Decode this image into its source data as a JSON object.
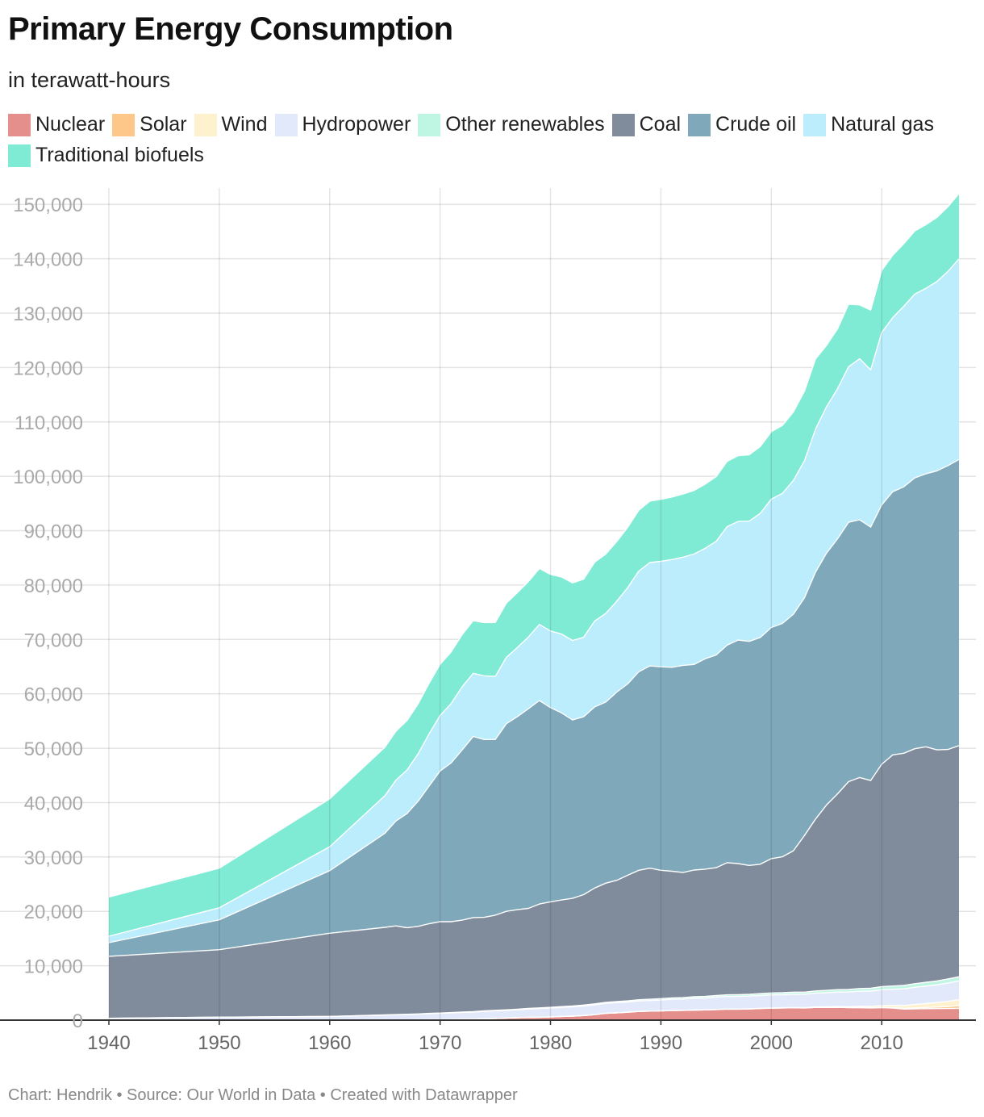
{
  "title": "Primary Energy Consumption",
  "subtitle": "in terawatt-hours",
  "footer": "Chart: Hendrik • Source: Our World in Data • Created with Datawrapper",
  "legend": [
    {
      "name": "Nuclear",
      "color": "#e58f8c"
    },
    {
      "name": "Solar",
      "color": "#fcc789"
    },
    {
      "name": "Wind",
      "color": "#fef1cd"
    },
    {
      "name": "Hydropower",
      "color": "#e2e9fb"
    },
    {
      "name": "Other renewables",
      "color": "#bff6e3"
    },
    {
      "name": "Coal",
      "color": "#808c9c"
    },
    {
      "name": "Crude oil",
      "color": "#7fa8ba"
    },
    {
      "name": "Natural gas",
      "color": "#bbedfc"
    },
    {
      "name": "Traditional biofuels",
      "color": "#80ebd4"
    }
  ],
  "chart_data": {
    "type": "area",
    "stacked": true,
    "title": "Primary Energy Consumption",
    "subtitle": "in terawatt-hours",
    "xlabel": "",
    "ylabel": "",
    "xlim": [
      1940,
      2017
    ],
    "ylim": [
      0,
      153000
    ],
    "x_ticks": [
      "1940",
      "1950",
      "1960",
      "1970",
      "1980",
      "1990",
      "2000",
      "2010"
    ],
    "x_tick_values": [
      1940,
      1950,
      1960,
      1970,
      1980,
      1990,
      2000,
      2010
    ],
    "y_ticks": [
      "0",
      "10,000",
      "20,000",
      "30,000",
      "40,000",
      "50,000",
      "60,000",
      "70,000",
      "80,000",
      "90,000",
      "100,000",
      "110,000",
      "120,000",
      "130,000",
      "140,000",
      "150,000"
    ],
    "y_tick_values": [
      0,
      10000,
      20000,
      30000,
      40000,
      50000,
      60000,
      70000,
      80000,
      90000,
      100000,
      110000,
      120000,
      130000,
      140000,
      150000
    ],
    "grid": true,
    "legend_position": "top",
    "x": [
      1940,
      1950,
      1960,
      1965,
      1966,
      1967,
      1968,
      1969,
      1970,
      1971,
      1972,
      1973,
      1974,
      1975,
      1976,
      1977,
      1978,
      1979,
      1980,
      1981,
      1982,
      1983,
      1984,
      1985,
      1986,
      1987,
      1988,
      1989,
      1990,
      1991,
      1992,
      1993,
      1994,
      1995,
      1996,
      1997,
      1998,
      1999,
      2000,
      2001,
      2002,
      2003,
      2004,
      2005,
      2006,
      2007,
      2008,
      2009,
      2010,
      2011,
      2012,
      2013,
      2014,
      2015,
      2016,
      2017
    ],
    "series": [
      {
        "name": "Nuclear",
        "color": "#e58f8c",
        "values": [
          0,
          0,
          0,
          20,
          30,
          50,
          60,
          80,
          90,
          120,
          150,
          200,
          250,
          310,
          380,
          460,
          520,
          540,
          590,
          680,
          740,
          850,
          1010,
          1250,
          1350,
          1460,
          1600,
          1660,
          1700,
          1760,
          1800,
          1850,
          1880,
          1950,
          2030,
          2020,
          2050,
          2140,
          2190,
          2240,
          2270,
          2240,
          2340,
          2340,
          2360,
          2300,
          2290,
          2240,
          2300,
          2220,
          2040,
          2080,
          2110,
          2120,
          2140,
          2160
        ]
      },
      {
        "name": "Solar",
        "color": "#fcc789",
        "values": [
          0,
          0,
          0,
          0,
          0,
          0,
          0,
          0,
          0,
          0,
          0,
          0,
          0,
          0,
          0,
          0,
          0,
          0,
          0,
          0,
          0,
          0,
          0,
          0,
          0,
          0,
          0,
          0,
          1,
          1,
          1,
          1,
          1,
          1,
          1,
          1,
          1,
          1,
          1,
          2,
          2,
          3,
          4,
          6,
          8,
          10,
          15,
          25,
          40,
          70,
          120,
          170,
          220,
          280,
          360,
          490
        ]
      },
      {
        "name": "Wind",
        "color": "#fef1cd",
        "values": [
          0,
          0,
          0,
          0,
          0,
          0,
          0,
          0,
          0,
          0,
          0,
          0,
          0,
          0,
          0,
          0,
          0,
          0,
          0,
          0,
          0,
          0,
          0,
          0,
          0,
          0,
          0,
          0,
          4,
          5,
          6,
          7,
          8,
          10,
          12,
          15,
          20,
          25,
          31,
          38,
          52,
          63,
          85,
          104,
          132,
          170,
          220,
          276,
          342,
          435,
          520,
          635,
          706,
          838,
          957,
          1120
        ]
      },
      {
        "name": "Hydropower",
        "color": "#e2e9fb",
        "values": [
          340,
          550,
          690,
          920,
          970,
          1000,
          1040,
          1110,
          1170,
          1220,
          1270,
          1290,
          1370,
          1410,
          1420,
          1440,
          1520,
          1590,
          1630,
          1660,
          1700,
          1760,
          1810,
          1840,
          1870,
          1880,
          1930,
          1940,
          2010,
          2060,
          2060,
          2160,
          2180,
          2270,
          2300,
          2340,
          2350,
          2370,
          2430,
          2400,
          2440,
          2460,
          2530,
          2590,
          2660,
          2700,
          2790,
          2800,
          2910,
          2960,
          3080,
          3160,
          3230,
          3250,
          3380,
          3460
        ]
      },
      {
        "name": "Other renewables",
        "color": "#bff6e3",
        "values": [
          0,
          0,
          0,
          30,
          30,
          40,
          40,
          50,
          50,
          60,
          70,
          70,
          80,
          90,
          100,
          110,
          120,
          130,
          140,
          150,
          160,
          170,
          180,
          190,
          200,
          210,
          230,
          240,
          250,
          260,
          270,
          280,
          290,
          300,
          310,
          320,
          330,
          340,
          350,
          360,
          380,
          390,
          410,
          430,
          450,
          470,
          500,
          520,
          560,
          590,
          620,
          660,
          690,
          710,
          730,
          760
        ]
      },
      {
        "name": "Coal",
        "color": "#808c9c",
        "values": [
          11400,
          12400,
          15300,
          16100,
          16300,
          15900,
          16100,
          16500,
          16800,
          16700,
          16900,
          17300,
          17200,
          17500,
          18100,
          18300,
          18400,
          19100,
          19400,
          19600,
          19800,
          20300,
          21300,
          21900,
          22300,
          23100,
          23800,
          24100,
          23600,
          23300,
          23000,
          23300,
          23400,
          23500,
          24300,
          24100,
          23700,
          23800,
          24700,
          25000,
          26000,
          28800,
          31600,
          34100,
          36000,
          38200,
          38800,
          38200,
          40900,
          42500,
          42700,
          43200,
          43300,
          42500,
          42200,
          42500
        ]
      },
      {
        "name": "Crude oil",
        "color": "#7fa8ba",
        "values": [
          2500,
          5500,
          11500,
          17300,
          19300,
          21000,
          23000,
          25300,
          27700,
          29200,
          31300,
          33300,
          32700,
          32300,
          34500,
          35500,
          36700,
          37400,
          35700,
          34400,
          32800,
          32700,
          33300,
          33300,
          34600,
          35200,
          36500,
          37200,
          37400,
          37500,
          38100,
          37800,
          38700,
          39100,
          40000,
          41100,
          41200,
          41700,
          42500,
          42900,
          43500,
          43700,
          45400,
          46300,
          46900,
          47700,
          47400,
          46600,
          47700,
          48400,
          49000,
          49800,
          50200,
          51300,
          52200,
          52600
        ]
      },
      {
        "name": "Natural gas",
        "color": "#bbedfc",
        "values": [
          1200,
          2200,
          4400,
          6900,
          7500,
          8000,
          8700,
          9600,
          10200,
          10900,
          11600,
          11600,
          11700,
          11600,
          12200,
          12700,
          13200,
          14000,
          14100,
          14500,
          14600,
          14600,
          15800,
          16300,
          16700,
          17700,
          18500,
          19000,
          19400,
          19800,
          19900,
          20300,
          20300,
          20900,
          21800,
          21800,
          22100,
          22800,
          23600,
          23900,
          24600,
          25200,
          26300,
          26900,
          27600,
          28600,
          29600,
          28900,
          31700,
          32000,
          33200,
          33800,
          34100,
          34800,
          35700,
          36900
        ]
      },
      {
        "name": "Traditional biofuels",
        "color": "#80ebd4",
        "values": [
          7200,
          7300,
          8800,
          8900,
          9000,
          9100,
          9200,
          9300,
          9400,
          9500,
          9600,
          9700,
          9800,
          9900,
          10000,
          10100,
          10200,
          10300,
          10400,
          10500,
          10600,
          10700,
          10800,
          10900,
          11000,
          11100,
          11200,
          11300,
          11400,
          11500,
          11600,
          11700,
          11800,
          11900,
          12000,
          12100,
          12200,
          12300,
          12400,
          12500,
          12600,
          12800,
          12900,
          11300,
          11000,
          11500,
          9900,
          11000,
          11400,
          11500,
          11500,
          11600,
          11700,
          11800,
          11900,
          12000
        ]
      }
    ]
  }
}
